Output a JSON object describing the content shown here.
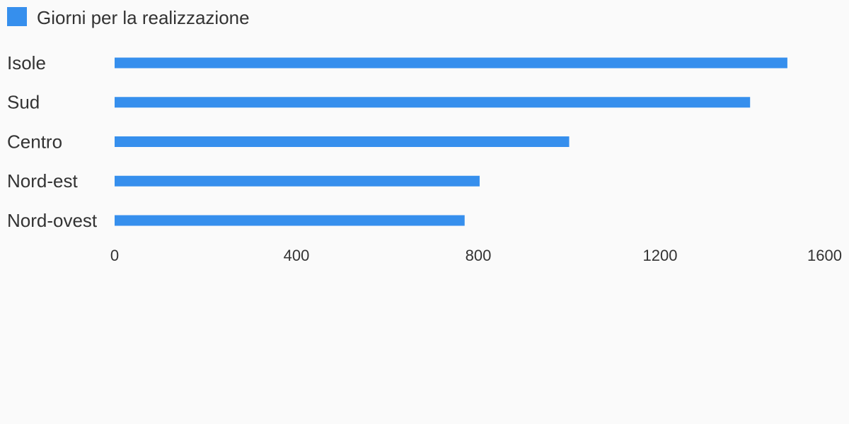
{
  "chart_data": {
    "type": "bar",
    "orientation": "horizontal",
    "categories": [
      "Isole",
      "Sud",
      "Centro",
      "Nord-est",
      "Nord-ovest"
    ],
    "series": [
      {
        "name": "Giorni per la realizzazione",
        "color": "#368fed",
        "values": [
          1480,
          1398,
          1000,
          803,
          770
        ]
      }
    ],
    "xlim": [
      0,
      1600
    ],
    "xticks": [
      0,
      400,
      800,
      1200,
      1600
    ],
    "grid": false,
    "legend": "top-left"
  }
}
